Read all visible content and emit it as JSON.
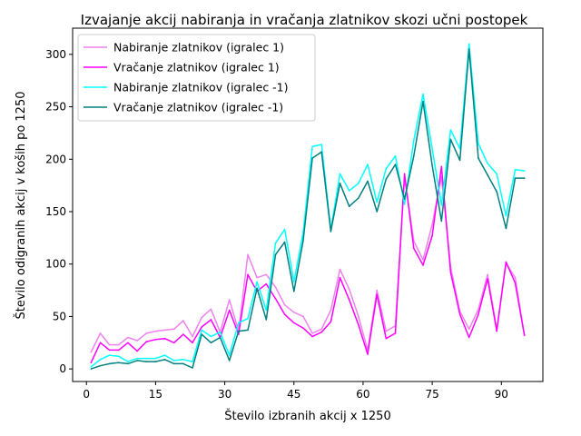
{
  "chart_data": {
    "type": "line",
    "title": "Izvajanje akcij nabiranja in vračanja zlatnikov skozi učni postopek",
    "xlabel": "Število izbranih akcij x 1250",
    "ylabel": "Število odigranih akcij v koših po 1250",
    "xlim": [
      -3,
      99
    ],
    "ylim": [
      -12,
      325
    ],
    "xticks": [
      0,
      15,
      30,
      45,
      60,
      75,
      90
    ],
    "yticks": [
      0,
      50,
      100,
      150,
      200,
      250,
      300
    ],
    "legend_position": "upper-left",
    "grid": false,
    "x": [
      1,
      3,
      5,
      7,
      9,
      11,
      13,
      15,
      17,
      19,
      21,
      23,
      25,
      27,
      29,
      31,
      33,
      35,
      37,
      39,
      41,
      43,
      45,
      47,
      49,
      51,
      53,
      55,
      57,
      59,
      61,
      63,
      65,
      67,
      69,
      71,
      73,
      75,
      77,
      79,
      81,
      83,
      85,
      87,
      89,
      91,
      93,
      95
    ],
    "series": [
      {
        "name": "Nabiranje zlatnikov (igralec 1)",
        "color": "#ee82ee",
        "values": [
          16,
          34,
          23,
          23,
          30,
          27,
          34,
          36,
          37,
          38,
          46,
          31,
          49,
          57,
          35,
          66,
          36,
          109,
          87,
          90,
          78,
          61,
          54,
          50,
          34,
          38,
          56,
          95,
          76,
          50,
          18,
          75,
          36,
          41,
          183,
          122,
          104,
          138,
          183,
          97,
          55,
          38,
          57,
          90,
          38,
          101,
          87,
          32
        ]
      },
      {
        "name": "Vračanje zlatnikov (igralec 1)",
        "color": "#ff00ff",
        "values": [
          6,
          25,
          18,
          18,
          25,
          17,
          26,
          28,
          29,
          25,
          33,
          25,
          40,
          47,
          30,
          56,
          33,
          90,
          74,
          81,
          67,
          52,
          44,
          39,
          31,
          35,
          45,
          87,
          66,
          42,
          14,
          71,
          29,
          34,
          186,
          115,
          99,
          127,
          193,
          92,
          52,
          30,
          52,
          86,
          36,
          102,
          82,
          32
        ]
      },
      {
        "name": "Nabiranje zlatnikov (igralec -1)",
        "color": "#00ffff",
        "values": [
          2,
          9,
          13,
          12,
          7,
          10,
          10,
          10,
          13,
          8,
          9,
          7,
          37,
          31,
          35,
          13,
          44,
          48,
          83,
          56,
          120,
          133,
          83,
          130,
          212,
          214,
          133,
          186,
          170,
          177,
          195,
          159,
          191,
          203,
          157,
          218,
          262,
          210,
          156,
          228,
          210,
          310,
          215,
          196,
          186,
          146,
          190,
          189
        ]
      },
      {
        "name": "Vračanje zlatnikov (igralec -1)",
        "color": "#008080",
        "values": [
          0,
          3,
          5,
          6,
          5,
          8,
          7,
          7,
          9,
          5,
          5,
          1,
          33,
          25,
          30,
          8,
          36,
          37,
          77,
          47,
          109,
          121,
          74,
          122,
          201,
          207,
          131,
          177,
          155,
          163,
          179,
          150,
          181,
          195,
          162,
          203,
          255,
          194,
          141,
          219,
          199,
          305,
          201,
          185,
          169,
          134,
          182,
          182
        ]
      }
    ]
  }
}
